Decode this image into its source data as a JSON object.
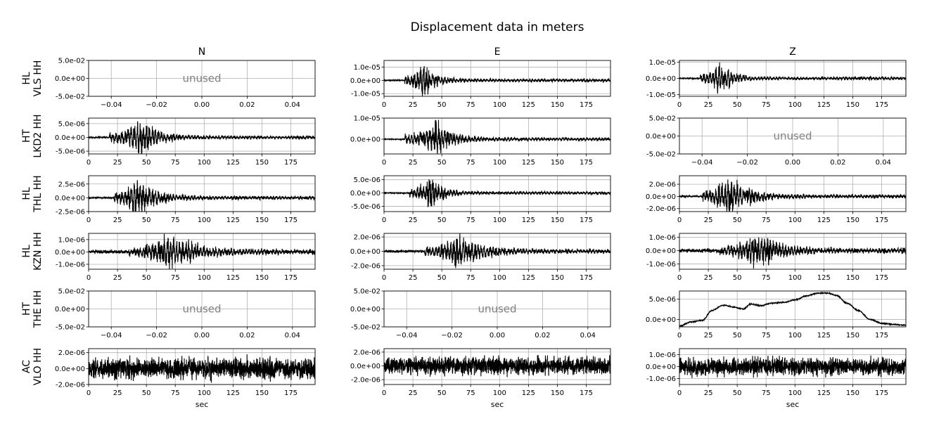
{
  "title": "Displacement data in meters",
  "columns": [
    "N",
    "E",
    "Z"
  ],
  "rows": [
    {
      "network": "HL",
      "station": "VLS HH"
    },
    {
      "network": "HT",
      "station": "LKD2 HH"
    },
    {
      "network": "HL",
      "station": "THL HH"
    },
    {
      "network": "HL",
      "station": "KZN HH"
    },
    {
      "network": "HT",
      "station": "THE HH"
    },
    {
      "network": "AC",
      "station": "VLO HH"
    }
  ],
  "x_label": "sec",
  "unused_label": "unused",
  "line_color": "#000000",
  "chart_data": {
    "type": "line",
    "title": "Displacement data in meters",
    "xlabel": "sec",
    "time_xlim": [
      0,
      196
    ],
    "time_xticks": [
      0,
      25,
      50,
      75,
      100,
      125,
      150,
      175
    ],
    "time_xtick_labels": [
      "0",
      "25",
      "50",
      "75",
      "100",
      "125",
      "150",
      "175"
    ],
    "unused_xlim": [
      -0.05,
      0.05
    ],
    "unused_xticks": [
      -0.04,
      -0.02,
      0.0,
      0.02,
      0.04
    ],
    "unused_xtick_labels": [
      "−0.04",
      "−0.02",
      "0.00",
      "0.02",
      "0.04"
    ],
    "unused_ylim": [
      -0.05,
      0.05
    ],
    "unused_yticks": [
      -0.05,
      0.0,
      0.05
    ],
    "unused_ytick_labels": [
      "-5.0e-02",
      "0.0e+00",
      "5.0e-02"
    ],
    "grid": true,
    "panels": [
      [
        {
          "unused": true
        },
        {
          "ylim": [
            -1.2e-05,
            1.5e-05
          ],
          "yticks": [
            1e-05,
            0,
            -1e-05
          ],
          "ytick_labels": [
            "1.0e-05",
            "0.0e+00",
            "-1.0e-05"
          ],
          "onset": 18,
          "peak_t": 35,
          "amp": 1.3e-05,
          "decay": 9,
          "noise": 4e-07,
          "seed": 11
        },
        {
          "ylim": [
            -1.1e-05,
            1.1e-05
          ],
          "yticks": [
            1e-05,
            0,
            -1e-05
          ],
          "ytick_labels": [
            "1.0e-05",
            "0.0e+00",
            "-1.0e-05"
          ],
          "onset": 18,
          "peak_t": 35,
          "amp": 1e-05,
          "decay": 10,
          "noise": 3e-07,
          "seed": 12
        }
      ],
      [
        {
          "ylim": [
            -6e-06,
            7e-06
          ],
          "yticks": [
            5e-06,
            0,
            -5e-06
          ],
          "ytick_labels": [
            "5.0e-06",
            "0.0e+00",
            "-5.0e-06"
          ],
          "onset": 18,
          "peak_t": 45,
          "amp": 6.5e-06,
          "decay": 14,
          "noise": 2e-07,
          "seed": 21
        },
        {
          "ylim": [
            -7e-06,
            1e-05
          ],
          "yticks": [
            1e-05,
            0
          ],
          "ytick_labels": [
            "1.0e-05",
            "0.0e+00"
          ],
          "onset": 18,
          "peak_t": 45,
          "amp": 8.5e-06,
          "decay": 13,
          "noise": 2e-07,
          "seed": 22
        },
        {
          "unused": true
        }
      ],
      [
        {
          "ylim": [
            -2.5e-06,
            4e-06
          ],
          "yticks": [
            2.5e-06,
            0,
            -2.5e-06
          ],
          "ytick_labels": [
            "2.5e-06",
            "0.0e+00",
            "-2.5e-06"
          ],
          "onset": 22,
          "peak_t": 42,
          "amp": 3.3e-06,
          "decay": 16,
          "noise": 1.2e-07,
          "seed": 31
        },
        {
          "ylim": [
            -7e-06,
            6.5e-06
          ],
          "yticks": [
            5e-06,
            0,
            -5e-06
          ],
          "ytick_labels": [
            "5.0e-06",
            "0.0e+00",
            "-5.0e-06"
          ],
          "onset": 22,
          "peak_t": 41,
          "amp": 6e-06,
          "decay": 10,
          "noise": 1.5e-07,
          "seed": 32
        },
        {
          "ylim": [
            -2.5e-06,
            3.4e-06
          ],
          "yticks": [
            2e-06,
            0,
            -2e-06
          ],
          "ytick_labels": [
            "2.0e-06",
            "0.0e+00",
            "-2.0e-06"
          ],
          "onset": 20,
          "peak_t": 43,
          "amp": 3e-06,
          "decay": 18,
          "noise": 1.2e-07,
          "seed": 33
        }
      ],
      [
        {
          "ylim": [
            -1.4e-06,
            1.5e-06
          ],
          "yticks": [
            1e-06,
            0,
            -1e-06
          ],
          "ytick_labels": [
            "1.0e-06",
            "0.0e+00",
            "-1.0e-06"
          ],
          "onset": 35,
          "peak_t": 70,
          "amp": 1.3e-06,
          "decay": 28,
          "noise": 1.2e-07,
          "seed": 41
        },
        {
          "ylim": [
            -2.5e-06,
            2.5e-06
          ],
          "yticks": [
            2e-06,
            0,
            -2e-06
          ],
          "ytick_labels": [
            "2.0e-06",
            "0.0e+00",
            "-2.0e-06"
          ],
          "onset": 35,
          "peak_t": 65,
          "amp": 2.3e-06,
          "decay": 22,
          "noise": 1.5e-07,
          "seed": 42
        },
        {
          "ylim": [
            -1.4e-06,
            1.3e-06
          ],
          "yticks": [
            1e-06,
            0,
            -1e-06
          ],
          "ytick_labels": [
            "1.0e-06",
            "0.0e+00",
            "-1.0e-06"
          ],
          "onset": 35,
          "peak_t": 68,
          "amp": 1.3e-06,
          "decay": 20,
          "noise": 1.2e-07,
          "seed": 43
        }
      ],
      [
        {
          "unused": true
        },
        {
          "unused": true
        },
        {
          "ylim": [
            -1.8e-06,
            7e-06
          ],
          "yticks": [
            5e-06,
            0
          ],
          "ytick_labels": [
            "5.0e-06",
            "0.0e+00"
          ],
          "kind": "drift",
          "seed": 53,
          "drift_t": [
            0,
            10,
            20,
            28,
            38,
            48,
            55,
            62,
            70,
            80,
            90,
            100,
            110,
            120,
            128,
            136,
            145,
            155,
            165,
            175,
            185,
            196
          ],
          "drift_v": [
            -1.6e-06,
            -6e-07,
            -2e-07,
            2.2e-06,
            3.5e-06,
            3e-06,
            2.6e-06,
            3.8e-06,
            3.4e-06,
            4e-06,
            4.2e-06,
            4.8e-06,
            5.8e-06,
            6.5e-06,
            6.5e-06,
            5.9e-06,
            4e-06,
            2.2e-06,
            0.0,
            -9e-07,
            -1.2e-06,
            -1.4e-06
          ]
        }
      ],
      [
        {
          "ylim": [
            -2e-06,
            2.5e-06
          ],
          "yticks": [
            2e-06,
            0,
            -2e-06
          ],
          "ytick_labels": [
            "2.0e-06",
            "0.0e+00",
            "-2.0e-06"
          ],
          "kind": "noise",
          "amp": 1.3e-06,
          "seed": 61
        },
        {
          "ylim": [
            -2.7e-06,
            2.5e-06
          ],
          "yticks": [
            2e-06,
            0,
            -2e-06
          ],
          "ytick_labels": [
            "2.0e-06",
            "0.0e+00",
            "-2.0e-06"
          ],
          "kind": "noise",
          "amp": 1.3e-06,
          "seed": 62
        },
        {
          "ylim": [
            -1.5e-06,
            1.5e-06
          ],
          "yticks": [
            1e-06,
            0,
            -1e-06
          ],
          "ytick_labels": [
            "1.0e-06",
            "0.0e+00",
            "-1.0e-06"
          ],
          "kind": "noise",
          "amp": 7.5e-07,
          "seed": 63
        }
      ]
    ]
  }
}
